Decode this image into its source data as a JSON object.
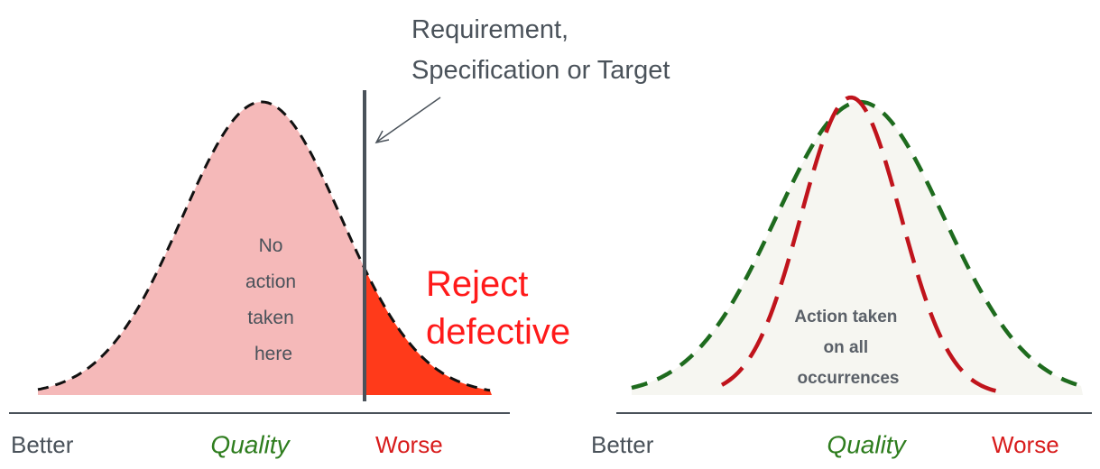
{
  "left": {
    "annotation": [
      "Requirement,",
      "Specification or Target"
    ],
    "inside": [
      "No",
      "action",
      "taken",
      "here"
    ],
    "reject": [
      "Reject",
      "defective"
    ],
    "axis": {
      "left": "Better",
      "middle": "Quality",
      "right": "Worse"
    }
  },
  "right": {
    "inside": [
      "Action taken",
      "on all",
      "occurrences"
    ],
    "axis": {
      "left": "Better",
      "middle": "Quality",
      "right": "Worse"
    }
  }
}
